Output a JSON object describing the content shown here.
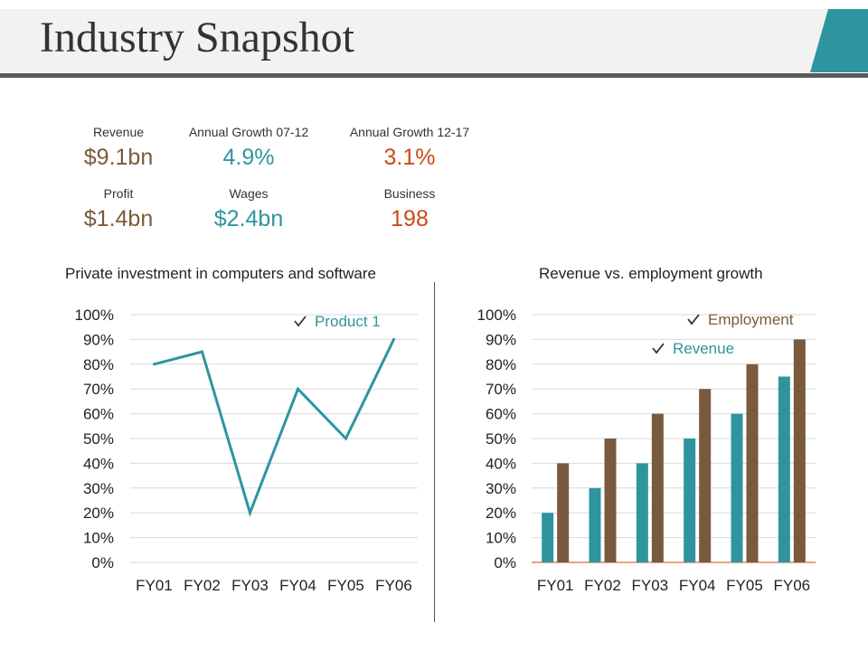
{
  "header": {
    "title": "Industry Snapshot"
  },
  "colors": {
    "teal": "#2e959e",
    "brown": "#7a5a3c",
    "orange": "#cc4a14",
    "accent": "#2e959e"
  },
  "stats": {
    "revenue": {
      "label": "Revenue",
      "value": "$9.1bn"
    },
    "growth1": {
      "label": "Annual  Growth  07-12",
      "value": "4.9%"
    },
    "growth2": {
      "label": "Annual  Growth  12-17",
      "value": "3.1%"
    },
    "profit": {
      "label": "Profit",
      "value": "$1.4bn"
    },
    "wages": {
      "label": "Wages",
      "value": "$2.4bn"
    },
    "business": {
      "label": "Business",
      "value": "198"
    }
  },
  "chart_data": [
    {
      "type": "line",
      "title": "Private investment in computers  and software",
      "categories": [
        "FY01",
        "FY02",
        "FY03",
        "FY04",
        "FY05",
        "FY06"
      ],
      "series": [
        {
          "name": "Product 1",
          "values": [
            80,
            85,
            20,
            70,
            50,
            90
          ]
        }
      ],
      "ylim": [
        0,
        100
      ],
      "yticks": [
        "0%",
        "10%",
        "20%",
        "30%",
        "40%",
        "50%",
        "60%",
        "70%",
        "80%",
        "90%",
        "100%"
      ],
      "legend": "top-right"
    },
    {
      "type": "bar",
      "title": "Revenue vs. employment  growth",
      "categories": [
        "FY01",
        "FY02",
        "FY03",
        "FY04",
        "FY05",
        "FY06"
      ],
      "series": [
        {
          "name": "Revenue",
          "values": [
            20,
            30,
            40,
            50,
            60,
            75
          ]
        },
        {
          "name": "Employment",
          "values": [
            40,
            50,
            60,
            70,
            80,
            90
          ]
        }
      ],
      "ylim": [
        0,
        100
      ],
      "yticks": [
        "0%",
        "10%",
        "20%",
        "30%",
        "40%",
        "50%",
        "60%",
        "70%",
        "80%",
        "90%",
        "100%"
      ],
      "legend": "top-right"
    }
  ]
}
